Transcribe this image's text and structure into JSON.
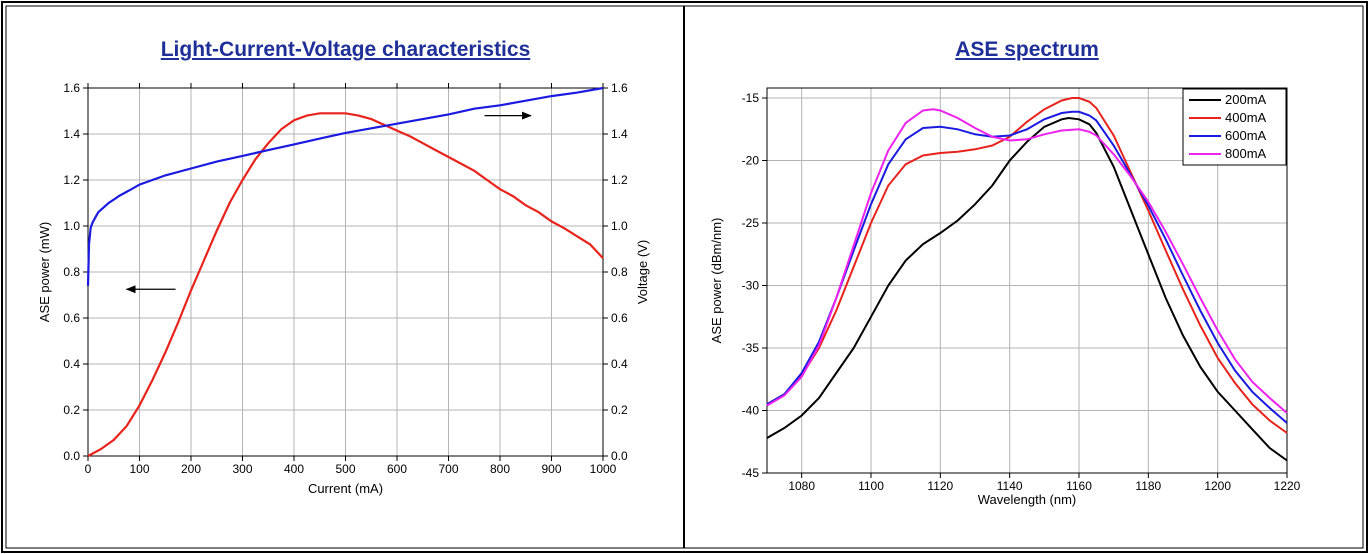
{
  "left_panel": {
    "title": "Light-Current-Voltage characteristics"
  },
  "right_panel": {
    "title": "ASE spectrum"
  },
  "colors": {
    "frame": "#000000",
    "title": "#1e2f98",
    "black": "#000000",
    "red": "#e8231c",
    "blue": "#1a1ae0",
    "magenta": "#ee22ee",
    "grid": "#b4b4b4"
  },
  "chart_data": [
    {
      "type": "line",
      "title": "Light-Current-Voltage characteristics",
      "xlabel": "Current (mA)",
      "ylabel": "ASE power (mW)",
      "y2label": "Voltage (V)",
      "xlim": [
        0,
        1000
      ],
      "ylim": [
        0,
        1.6
      ],
      "y2lim": [
        0,
        1.6
      ],
      "xticks": [
        "0",
        "100",
        "200",
        "300",
        "400",
        "500",
        "600",
        "700",
        "800",
        "900",
        "1000"
      ],
      "yticks": [
        "0.0",
        "0.2",
        "0.4",
        "0.6",
        "0.8",
        "1.0",
        "1.2",
        "1.4",
        "1.6"
      ],
      "y2ticks": [
        "0.0",
        "0.2",
        "0.4",
        "0.6",
        "0.8",
        "1.0",
        "1.2",
        "1.4",
        "1.6"
      ],
      "grid": true,
      "series": [
        {
          "axis": "left",
          "color": "#e8231c",
          "x": [
            0,
            25,
            50,
            75,
            100,
            125,
            150,
            175,
            200,
            225,
            250,
            275,
            300,
            325,
            350,
            375,
            400,
            425,
            450,
            475,
            500,
            525,
            550,
            575,
            600,
            625,
            650,
            675,
            700,
            725,
            750,
            775,
            800,
            825,
            850,
            875,
            900,
            925,
            950,
            975,
            1000
          ],
          "y": [
            0,
            0.03,
            0.07,
            0.13,
            0.22,
            0.33,
            0.45,
            0.58,
            0.72,
            0.85,
            0.98,
            1.1,
            1.2,
            1.29,
            1.36,
            1.42,
            1.46,
            1.48,
            1.49,
            1.49,
            1.49,
            1.48,
            1.465,
            1.44,
            1.415,
            1.39,
            1.36,
            1.33,
            1.3,
            1.27,
            1.24,
            1.2,
            1.16,
            1.13,
            1.09,
            1.06,
            1.02,
            0.99,
            0.955,
            0.92,
            0.86
          ]
        },
        {
          "axis": "right",
          "color": "#1a1ae0",
          "x": [
            0,
            2,
            5,
            8,
            10,
            15,
            20,
            30,
            40,
            50,
            60,
            80,
            100,
            150,
            200,
            250,
            300,
            350,
            400,
            450,
            500,
            550,
            600,
            650,
            700,
            750,
            800,
            850,
            900,
            950,
            1000
          ],
          "y": [
            0.74,
            0.92,
            0.99,
            1.01,
            1.02,
            1.04,
            1.06,
            1.08,
            1.1,
            1.115,
            1.13,
            1.155,
            1.18,
            1.22,
            1.25,
            1.28,
            1.305,
            1.33,
            1.355,
            1.38,
            1.405,
            1.425,
            1.445,
            1.465,
            1.485,
            1.51,
            1.525,
            1.545,
            1.565,
            1.58,
            1.6
          ]
        }
      ],
      "annotations": [
        {
          "type": "arrow",
          "direction": "left",
          "from": [
            170,
            0.725
          ],
          "to": [
            75,
            0.725
          ]
        },
        {
          "type": "arrow",
          "direction": "right",
          "from": [
            770,
            1.48
          ],
          "to": [
            860,
            1.48
          ]
        }
      ]
    },
    {
      "type": "line",
      "title": "ASE spectrum",
      "xlabel": "Wavelength (nm)",
      "ylabel": "ASE power (dBm/nm)",
      "xlim": [
        1070,
        1220
      ],
      "ylim": [
        -45,
        -14.2
      ],
      "xticks": [
        "1080",
        "1100",
        "1120",
        "1140",
        "1160",
        "1180",
        "1200",
        "1220"
      ],
      "yticks": [
        "-45",
        "-40",
        "-35",
        "-30",
        "-25",
        "-20",
        "-15"
      ],
      "grid": true,
      "legend_position": "top-right",
      "series": [
        {
          "name": "200mA",
          "color": "#000000",
          "x": [
            1070,
            1075,
            1080,
            1085,
            1090,
            1095,
            1100,
            1105,
            1110,
            1115,
            1120,
            1125,
            1130,
            1135,
            1140,
            1145,
            1150,
            1155,
            1157,
            1160,
            1163,
            1165,
            1170,
            1175,
            1180,
            1185,
            1190,
            1195,
            1200,
            1205,
            1210,
            1215,
            1220
          ],
          "y": [
            -42.2,
            -41.4,
            -40.4,
            -39,
            -37,
            -35,
            -32.5,
            -30,
            -28,
            -26.7,
            -25.8,
            -24.8,
            -23.5,
            -22,
            -20,
            -18.5,
            -17.3,
            -16.7,
            -16.6,
            -16.7,
            -17.1,
            -17.8,
            -20.5,
            -24,
            -27.5,
            -31,
            -34,
            -36.5,
            -38.5,
            -40,
            -41.5,
            -43,
            -44
          ]
        },
        {
          "name": "400mA",
          "color": "#e8231c",
          "x": [
            1070,
            1075,
            1080,
            1085,
            1090,
            1095,
            1100,
            1105,
            1110,
            1115,
            1120,
            1125,
            1130,
            1135,
            1140,
            1145,
            1150,
            1155,
            1158,
            1160,
            1163,
            1165,
            1170,
            1175,
            1180,
            1185,
            1190,
            1195,
            1200,
            1205,
            1210,
            1215,
            1220
          ],
          "y": [
            -39.5,
            -38.7,
            -37.2,
            -35,
            -32,
            -28.5,
            -25,
            -22,
            -20.3,
            -19.6,
            -19.4,
            -19.3,
            -19.1,
            -18.8,
            -18.1,
            -16.9,
            -15.9,
            -15.2,
            -15.0,
            -15.0,
            -15.3,
            -15.8,
            -18,
            -21,
            -24,
            -27.2,
            -30.3,
            -33.2,
            -35.8,
            -37.8,
            -39.5,
            -40.8,
            -41.8
          ]
        },
        {
          "name": "600mA",
          "color": "#1a1ae0",
          "x": [
            1070,
            1075,
            1080,
            1085,
            1090,
            1095,
            1100,
            1105,
            1110,
            1115,
            1120,
            1125,
            1130,
            1135,
            1140,
            1145,
            1150,
            1155,
            1158,
            1160,
            1163,
            1165,
            1170,
            1175,
            1180,
            1185,
            1190,
            1195,
            1200,
            1205,
            1210,
            1215,
            1220
          ],
          "y": [
            -39.5,
            -38.7,
            -37,
            -34.5,
            -31,
            -27.2,
            -23.5,
            -20.3,
            -18.3,
            -17.4,
            -17.3,
            -17.5,
            -17.9,
            -18.1,
            -18.0,
            -17.5,
            -16.7,
            -16.2,
            -16.1,
            -16.1,
            -16.4,
            -16.8,
            -18.8,
            -21.2,
            -23.6,
            -26.3,
            -29.2,
            -32,
            -34.6,
            -36.8,
            -38.5,
            -39.8,
            -41
          ]
        },
        {
          "name": "800mA",
          "color": "#ee22ee",
          "x": [
            1070,
            1075,
            1080,
            1085,
            1090,
            1095,
            1100,
            1105,
            1110,
            1115,
            1118,
            1120,
            1125,
            1130,
            1135,
            1140,
            1145,
            1150,
            1155,
            1160,
            1163,
            1165,
            1170,
            1175,
            1180,
            1185,
            1190,
            1195,
            1200,
            1205,
            1210,
            1215,
            1220
          ],
          "y": [
            -39.6,
            -38.8,
            -37.3,
            -34.8,
            -31,
            -26.8,
            -22.6,
            -19.2,
            -17,
            -16,
            -15.9,
            -16,
            -16.6,
            -17.4,
            -18.1,
            -18.4,
            -18.3,
            -17.9,
            -17.6,
            -17.5,
            -17.7,
            -18,
            -19.5,
            -21.3,
            -23.3,
            -25.7,
            -28.3,
            -31,
            -33.6,
            -35.9,
            -37.7,
            -39,
            -40.2
          ]
        }
      ]
    }
  ]
}
